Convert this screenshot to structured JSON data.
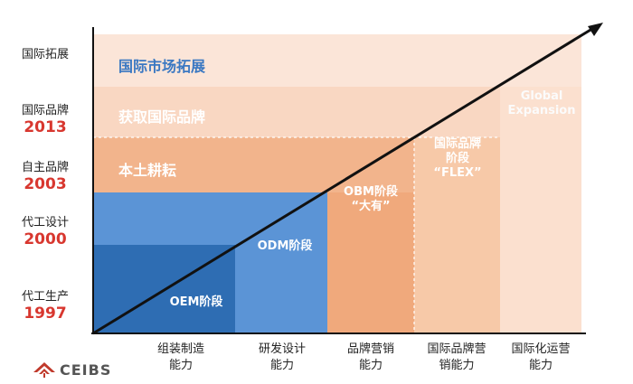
{
  "y_axis": [
    {
      "name": "国际拓展",
      "year": ""
    },
    {
      "name": "国际品牌",
      "year": "2013"
    },
    {
      "name": "自主品牌",
      "year": "2003"
    },
    {
      "name": "代工设计",
      "year": "2000"
    },
    {
      "name": "代工生产",
      "year": "1997"
    }
  ],
  "x_axis": [
    {
      "line1": "组装制造",
      "line2": "能力"
    },
    {
      "line1": "研发设计",
      "line2": "能力"
    },
    {
      "line1": "品牌营销",
      "line2": "能力"
    },
    {
      "line1": "国际品牌营",
      "line2": "销能力"
    },
    {
      "line1": "国际化运营",
      "line2": "能力"
    }
  ],
  "bands": [
    {
      "label": "国际市场拓展"
    },
    {
      "label": "获取国际品牌"
    },
    {
      "label": "本土耕耘"
    }
  ],
  "stages": [
    {
      "line1": "OEM阶段",
      "line2": ""
    },
    {
      "line1": "ODM阶段",
      "line2": ""
    },
    {
      "line1": "OBM阶段",
      "line2": "“大有”"
    },
    {
      "line1": "国际品牌",
      "line2": "阶段",
      "line3": "“FLEX”"
    },
    {
      "line1": "Global",
      "line2": "Expansion"
    }
  ],
  "logo": {
    "text": "CEIBS"
  },
  "colors": {
    "oem": "#2e6db3",
    "odm": "#5b94d6",
    "obm": "#f0a97c",
    "flex": "#f7c9a8",
    "global": "#fbe0cf",
    "band_blue_text": "#3a78c2",
    "band_white_text": "#ffffff",
    "year_red": "#d8372f",
    "arrow": "#111111"
  }
}
